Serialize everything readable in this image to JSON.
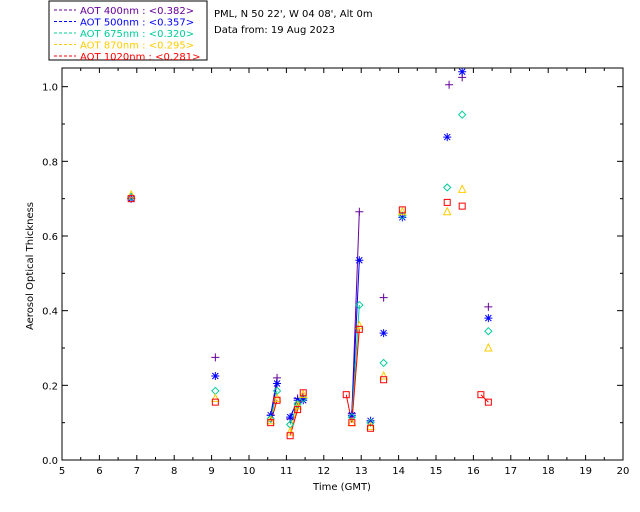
{
  "chart_data": {
    "type": "scatter",
    "title": "",
    "header_lines": [
      "PML, N 50 22', W 04 08', Alt 0m",
      "Data from: 19 Aug 2023"
    ],
    "xlabel": "Time (GMT)",
    "ylabel": "Aerosol Optical Thickness",
    "xlim": [
      5,
      20
    ],
    "ylim": [
      0.0,
      1.05
    ],
    "xticks": [
      "5",
      "6",
      "7",
      "8",
      "9",
      "10",
      "11",
      "12",
      "13",
      "14",
      "15",
      "16",
      "17",
      "18",
      "19",
      "20"
    ],
    "yticks": [
      "0.0",
      "0.2",
      "0.4",
      "0.6",
      "0.8",
      "1.0"
    ],
    "legend_position": "top-left",
    "series": [
      {
        "name": "AOT  400nm",
        "mean_label": "AOT  400nm : <0.382>",
        "color": "#660099",
        "marker": "plus",
        "x": [
          6.85,
          9.1,
          10.58,
          10.75,
          11.1,
          11.3,
          11.45,
          12.75,
          12.95,
          13.6,
          15.35,
          15.7,
          16.4
        ],
        "values": [
          0.7,
          0.275,
          0.12,
          0.22,
          0.11,
          0.165,
          0.165,
          0.125,
          0.665,
          0.435,
          1.005,
          1.025,
          0.41
        ]
      },
      {
        "name": "AOT  500nm",
        "mean_label": "AOT  500nm : <0.357>",
        "color": "#0000ff",
        "marker": "asterisk",
        "x": [
          6.85,
          9.1,
          10.58,
          10.75,
          11.1,
          11.3,
          11.45,
          12.75,
          12.95,
          13.25,
          13.6,
          14.1,
          15.3,
          15.7,
          16.4
        ],
        "values": [
          0.7,
          0.225,
          0.12,
          0.205,
          0.115,
          0.16,
          0.16,
          0.12,
          0.535,
          0.105,
          0.34,
          0.65,
          0.865,
          1.04,
          0.38
        ]
      },
      {
        "name": "AOT  675nm",
        "mean_label": "AOT  675nm : <0.320>",
        "color": "#00cc99",
        "marker": "diamond",
        "x": [
          6.85,
          9.1,
          10.58,
          10.75,
          11.1,
          11.3,
          11.45,
          12.75,
          12.95,
          13.25,
          13.6,
          14.1,
          15.3,
          15.7,
          16.4
        ],
        "values": [
          0.705,
          0.185,
          0.11,
          0.185,
          0.095,
          0.15,
          0.165,
          0.115,
          0.415,
          0.1,
          0.26,
          0.655,
          0.73,
          0.925,
          0.345
        ]
      },
      {
        "name": "AOT  870nm",
        "mean_label": "AOT  870nm : <0.295>",
        "color": "#ffcc00",
        "marker": "triangle",
        "x": [
          6.85,
          9.1,
          10.58,
          10.75,
          11.1,
          11.3,
          11.45,
          12.75,
          12.95,
          13.25,
          13.6,
          14.1,
          15.3,
          15.7,
          16.4
        ],
        "values": [
          0.71,
          0.165,
          0.105,
          0.165,
          0.075,
          0.145,
          0.175,
          0.1,
          0.36,
          0.09,
          0.225,
          0.665,
          0.665,
          0.725,
          0.3
        ]
      },
      {
        "name": "AOT 1020nm",
        "mean_label": "AOT 1020nm : <0.281>",
        "color": "#ff0000",
        "marker": "square",
        "x": [
          6.85,
          9.1,
          10.58,
          10.75,
          11.1,
          11.3,
          11.45,
          12.6,
          12.75,
          12.95,
          13.25,
          13.6,
          14.1,
          15.3,
          15.7,
          16.2,
          16.4
        ],
        "values": [
          0.7,
          0.155,
          0.1,
          0.16,
          0.065,
          0.135,
          0.18,
          0.175,
          0.1,
          0.35,
          0.085,
          0.215,
          0.67,
          0.69,
          0.68,
          0.175,
          0.155
        ]
      }
    ],
    "connected_segments": [
      {
        "x": [
          10.58,
          10.75
        ]
      },
      {
        "x": [
          11.1,
          11.3,
          11.45
        ]
      },
      {
        "x": [
          12.6,
          12.75,
          12.95
        ]
      },
      {
        "x": [
          16.2,
          16.4
        ]
      }
    ]
  }
}
